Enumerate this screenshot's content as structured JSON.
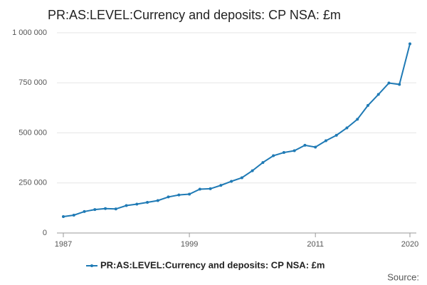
{
  "chart_data": {
    "type": "line",
    "title": "PR:AS:LEVEL:Currency and deposits: CP NSA: £m",
    "source": "Source:",
    "x": [
      1987,
      1988,
      1989,
      1990,
      1991,
      1992,
      1993,
      1994,
      1995,
      1996,
      1997,
      1998,
      1999,
      2000,
      2001,
      2002,
      2003,
      2004,
      2005,
      2006,
      2007,
      2008,
      2009,
      2010,
      2011,
      2012,
      2013,
      2014,
      2015,
      2016,
      2017,
      2018,
      2019,
      2020
    ],
    "series": [
      {
        "name": "PR:AS:LEVEL:Currency and deposits: CP NSA: £m",
        "color": "#1f7ab5",
        "values": [
          82000,
          89000,
          107000,
          117000,
          122000,
          120000,
          137000,
          144000,
          153000,
          162000,
          180000,
          190000,
          194000,
          219000,
          221000,
          238000,
          258000,
          276000,
          311000,
          352000,
          386000,
          402000,
          411000,
          438000,
          429000,
          461000,
          488000,
          525000,
          568000,
          637000,
          692000,
          749000,
          742000,
          945000
        ]
      }
    ],
    "xlim": [
      1987,
      2020
    ],
    "xticks": [
      1987,
      1999,
      2011,
      2020
    ],
    "ylim": [
      0,
      1000000
    ],
    "yticks": [
      0,
      {
        "value": 250000,
        "label": "250 000"
      },
      {
        "value": 500000,
        "label": "500 000"
      },
      {
        "value": 750000,
        "label": "750 000"
      },
      {
        "value": 1000000,
        "label": "1 000 000"
      }
    ],
    "grid": true,
    "legend": "bottom"
  }
}
